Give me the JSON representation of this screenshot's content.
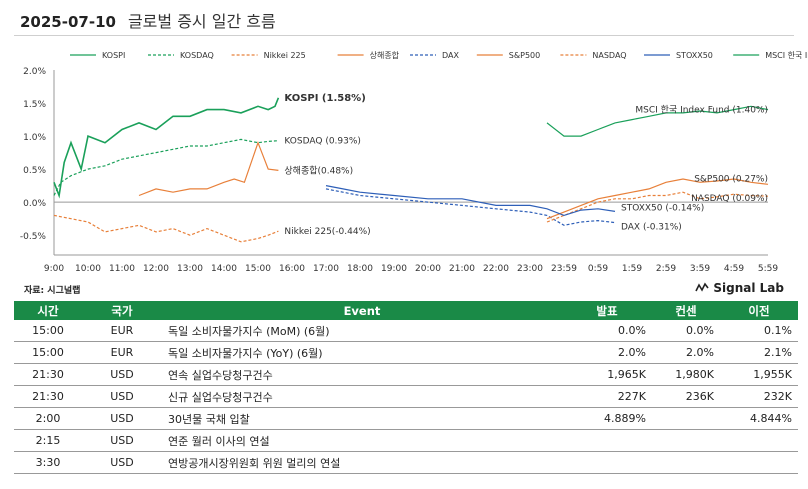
{
  "header": {
    "date": "2025-07-10",
    "title": "글로벌 증시 일간 흐름"
  },
  "source_label": "자료: 시그널랩",
  "brand": {
    "name": "Signal Lab"
  },
  "chart_data": {
    "type": "line",
    "ylim": [
      -0.8,
      2.0
    ],
    "yticks": [
      "2.0%",
      "1.5%",
      "1.0%",
      "0.5%",
      "0.0%",
      "-0.5%"
    ],
    "yticks_values": [
      2.0,
      1.5,
      1.0,
      0.5,
      0.0,
      -0.5
    ],
    "xticks": [
      "9:00",
      "10:00",
      "11:00",
      "12:00",
      "13:00",
      "14:00",
      "15:00",
      "16:00",
      "17:00",
      "18:00",
      "19:00",
      "20:00",
      "21:00",
      "22:00",
      "23:00",
      "23:59",
      "0:59",
      "1:59",
      "2:59",
      "3:59",
      "4:59",
      "5:59"
    ],
    "series": [
      {
        "name": "KOSPI",
        "color": "#1aa05a",
        "dash": "solid",
        "end_label": "KOSPI (1.58%)",
        "x": [
          0,
          0.15,
          0.3,
          0.5,
          0.8,
          1.0,
          1.5,
          2.0,
          2.5,
          3.0,
          3.5,
          4.0,
          4.5,
          5.0,
          5.5,
          6.0,
          6.3,
          6.5,
          6.6
        ],
        "y": [
          0.3,
          0.1,
          0.6,
          0.9,
          0.5,
          1.0,
          0.9,
          1.1,
          1.2,
          1.1,
          1.3,
          1.3,
          1.4,
          1.4,
          1.35,
          1.45,
          1.4,
          1.45,
          1.58
        ]
      },
      {
        "name": "KOSDAQ",
        "color": "#1aa05a",
        "dash": "3,2",
        "end_label": "KOSDAQ (0.93%)",
        "x": [
          0,
          0.2,
          0.5,
          1.0,
          1.5,
          2.0,
          2.5,
          3.0,
          3.5,
          4.0,
          4.5,
          5.0,
          5.5,
          6.0,
          6.3,
          6.6
        ],
        "y": [
          0.1,
          0.3,
          0.4,
          0.5,
          0.55,
          0.65,
          0.7,
          0.75,
          0.8,
          0.85,
          0.85,
          0.9,
          0.95,
          0.9,
          0.92,
          0.93
        ]
      },
      {
        "name": "Nikkei 225",
        "color": "#e8803a",
        "dash": "3,2",
        "end_label": "Nikkei 225(-0.44%)",
        "x": [
          0,
          0.5,
          1.0,
          1.5,
          2.0,
          2.5,
          3.0,
          3.5,
          4.0,
          4.5,
          5.0,
          5.5,
          6.0,
          6.3,
          6.6
        ],
        "y": [
          -0.2,
          -0.25,
          -0.3,
          -0.45,
          -0.4,
          -0.35,
          -0.45,
          -0.4,
          -0.5,
          -0.4,
          -0.5,
          -0.6,
          -0.55,
          -0.5,
          -0.44
        ]
      },
      {
        "name": "상해종합",
        "color": "#e8803a",
        "dash": "solid",
        "end_label": "상해종합(0.48%)",
        "x": [
          2.5,
          3.0,
          3.5,
          4.0,
          4.5,
          5.0,
          5.3,
          5.6,
          6.0,
          6.3,
          6.6
        ],
        "y": [
          0.1,
          0.2,
          0.15,
          0.2,
          0.2,
          0.3,
          0.35,
          0.3,
          0.9,
          0.5,
          0.48
        ]
      },
      {
        "name": "DAX",
        "color": "#2e5fb8",
        "dash": "3,2",
        "end_label": "DAX (-0.31%)",
        "x": [
          8.0,
          8.5,
          9.0,
          10.0,
          11.0,
          12.0,
          13.0,
          14.0,
          14.5,
          15.0,
          15.5,
          16.0,
          16.5
        ],
        "y": [
          0.2,
          0.15,
          0.1,
          0.05,
          0.0,
          -0.05,
          -0.1,
          -0.15,
          -0.2,
          -0.35,
          -0.3,
          -0.28,
          -0.31
        ]
      },
      {
        "name": "S&P500",
        "color": "#e8803a",
        "dash": "solid",
        "end_label": "S&P500 (0.27%)",
        "x": [
          14.5,
          15.0,
          15.5,
          16.0,
          16.5,
          17.0,
          17.5,
          18.0,
          18.5,
          19.0,
          19.5,
          20.0,
          20.5,
          21.0
        ],
        "y": [
          -0.25,
          -0.15,
          -0.05,
          0.05,
          0.1,
          0.15,
          0.2,
          0.3,
          0.35,
          0.3,
          0.32,
          0.35,
          0.3,
          0.27
        ]
      },
      {
        "name": "NASDAQ",
        "color": "#e8803a",
        "dash": "3,2",
        "end_label": "NASDAQ (0.09%)",
        "x": [
          14.5,
          15.0,
          15.5,
          16.0,
          16.5,
          17.0,
          17.5,
          18.0,
          18.5,
          19.0,
          19.5,
          20.0,
          20.5,
          21.0
        ],
        "y": [
          -0.3,
          -0.2,
          -0.1,
          0.0,
          0.05,
          0.05,
          0.1,
          0.1,
          0.15,
          0.05,
          0.08,
          0.12,
          0.1,
          0.09
        ]
      },
      {
        "name": "STOXX50",
        "color": "#2e5fb8",
        "dash": "solid",
        "end_label": "STOXX50 (-0.14%)",
        "x": [
          8.0,
          8.5,
          9.0,
          10.0,
          11.0,
          12.0,
          13.0,
          14.0,
          14.5,
          15.0,
          15.5,
          16.0,
          16.5
        ],
        "y": [
          0.25,
          0.2,
          0.15,
          0.1,
          0.05,
          0.05,
          -0.05,
          -0.05,
          -0.1,
          -0.2,
          -0.12,
          -0.1,
          -0.14
        ]
      },
      {
        "name": "MSCI 한국 Index Fund",
        "color": "#1aa05a",
        "dash": "solid",
        "end_label": "MSCI 한국 Index Fund (1.40%)",
        "x": [
          14.5,
          15.0,
          15.5,
          16.0,
          16.5,
          17.0,
          17.5,
          18.0,
          18.5,
          19.0,
          19.5,
          20.0,
          20.5,
          21.0
        ],
        "y": [
          1.2,
          1.0,
          1.0,
          1.1,
          1.2,
          1.25,
          1.3,
          1.35,
          1.35,
          1.38,
          1.35,
          1.4,
          1.45,
          1.4
        ]
      }
    ]
  },
  "table": {
    "headers": [
      "시간",
      "국가",
      "Event",
      "발표",
      "컨센",
      "이전"
    ],
    "rows": [
      [
        "15:00",
        "EUR",
        "독일 소비자물가지수 (MoM) (6월)",
        "0.0%",
        "0.0%",
        "0.1%"
      ],
      [
        "15:00",
        "EUR",
        "독일 소비자물가지수 (YoY) (6월)",
        "2.0%",
        "2.0%",
        "2.1%"
      ],
      [
        "21:30",
        "USD",
        "연속 실업수당청구건수",
        "1,965K",
        "1,980K",
        "1,955K"
      ],
      [
        "21:30",
        "USD",
        "신규 실업수당청구건수",
        "227K",
        "236K",
        "232K"
      ],
      [
        "2:00",
        "USD",
        "30년물 국채 입찰",
        "4.889%",
        "",
        "4.844%"
      ],
      [
        "2:15",
        "USD",
        "연준 월러 이사의 연설",
        "",
        "",
        ""
      ],
      [
        "3:30",
        "USD",
        "연방공개시장위원회 위원 멀리의 연설",
        "",
        "",
        ""
      ]
    ]
  }
}
